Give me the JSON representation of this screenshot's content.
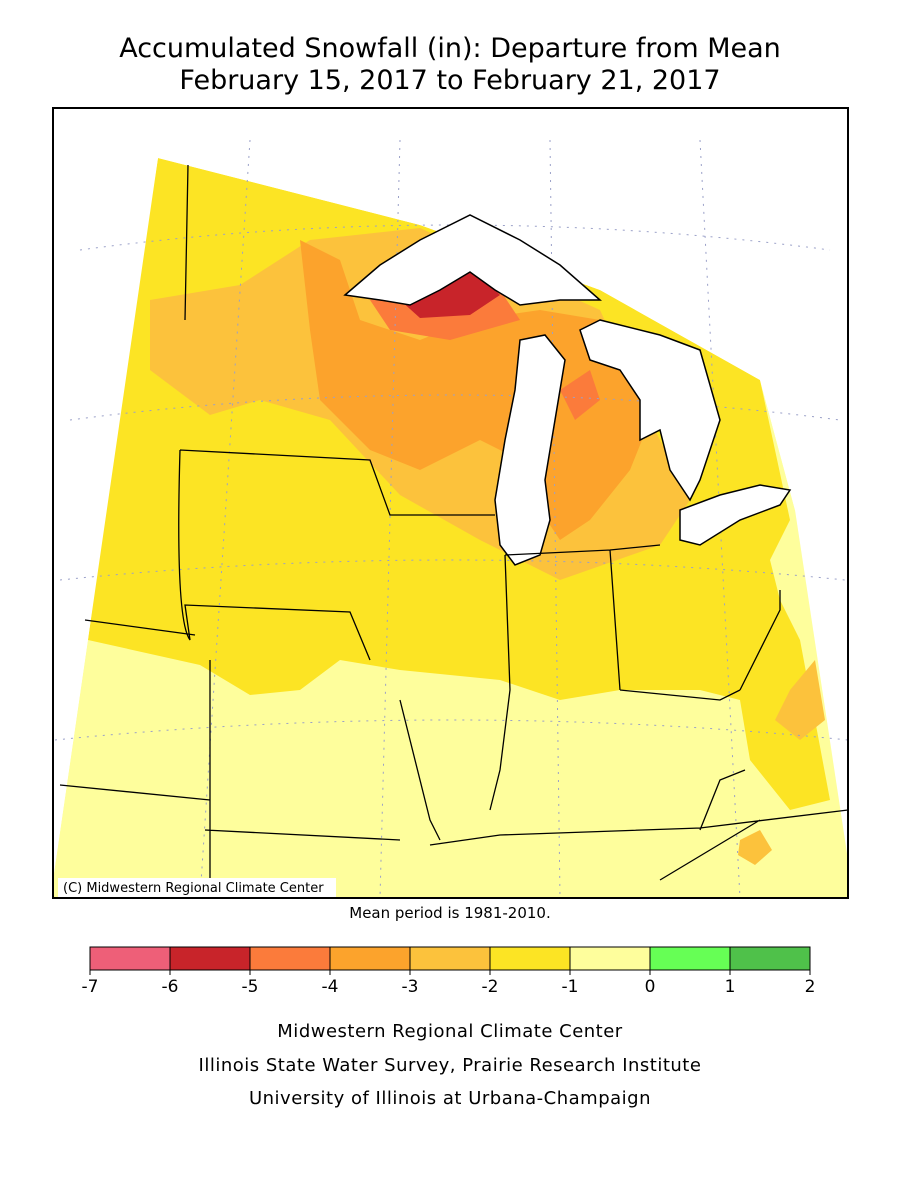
{
  "header": {
    "title_lines": [
      "Accumulated Snowfall (in): Departure from Mean",
      "February 15, 2017 to February 21, 2017"
    ]
  },
  "map": {
    "copyright": "(C) Midwestern Regional Climate Center",
    "note": "Mean period is 1981-2010."
  },
  "legend": {
    "bounds": [
      -7,
      -6,
      -5,
      -4,
      -3,
      -2,
      -1,
      0,
      1,
      2
    ],
    "colors": [
      "#ee5f78",
      "#c8242a",
      "#fb7b3b",
      "#fca32c",
      "#fcc23c",
      "#fce424",
      "#fefe9c",
      "#66ff55",
      "#4fc14a"
    ]
  },
  "footer": {
    "lines": [
      "Midwestern Regional Climate Center",
      "Illinois State Water Survey, Prairie Research Institute",
      "University of Illinois at Urbana-Champaign"
    ]
  }
}
